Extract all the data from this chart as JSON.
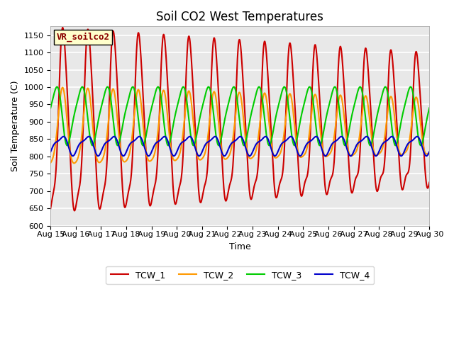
{
  "title": "Soil CO2 West Temperatures",
  "xlabel": "Time",
  "ylabel": "Soil Temperature (C)",
  "ylim": [
    600,
    1175
  ],
  "yticks": [
    600,
    650,
    700,
    750,
    800,
    850,
    900,
    950,
    1000,
    1050,
    1100,
    1150
  ],
  "xlim_days": [
    15,
    30
  ],
  "xtick_labels": [
    "Aug 15",
    "Aug 16",
    "Aug 17",
    "Aug 18",
    "Aug 19",
    "Aug 20",
    "Aug 21",
    "Aug 22",
    "Aug 23",
    "Aug 24",
    "Aug 25",
    "Aug 26",
    "Aug 27",
    "Aug 28",
    "Aug 29",
    "Aug 30"
  ],
  "vr_label": "VR_soilco2",
  "legend_entries": [
    "TCW_1",
    "TCW_2",
    "TCW_3",
    "TCW_4"
  ],
  "line_colors": [
    "#cc0000",
    "#ff9900",
    "#00cc00",
    "#0000cc"
  ],
  "bg_color": "#e8e8e8",
  "title_fontsize": 12,
  "axis_fontsize": 9,
  "tick_fontsize": 8,
  "line_width": 1.5,
  "n_points": 2000
}
